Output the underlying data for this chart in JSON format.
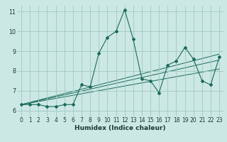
{
  "title": "",
  "xlabel": "Humidex (Indice chaleur)",
  "bg_color": "#cce8e4",
  "line_color": "#1a6b5a",
  "grid_color": "#a0c8c0",
  "xlim": [
    -0.5,
    23.5
  ],
  "ylim": [
    5.7,
    11.3
  ],
  "xticks": [
    0,
    1,
    2,
    3,
    4,
    5,
    6,
    7,
    8,
    9,
    10,
    11,
    12,
    13,
    14,
    15,
    16,
    17,
    18,
    19,
    20,
    21,
    22,
    23
  ],
  "yticks": [
    6,
    7,
    8,
    9,
    10,
    11
  ],
  "series1_x": [
    0,
    1,
    2,
    3,
    4,
    5,
    6,
    7,
    8,
    9,
    10,
    11,
    12,
    13,
    14,
    15,
    16,
    17,
    18,
    19,
    20,
    21,
    22,
    23
  ],
  "series1_y": [
    6.3,
    6.3,
    6.3,
    6.2,
    6.2,
    6.3,
    6.3,
    7.3,
    7.2,
    8.9,
    9.7,
    10.0,
    11.1,
    9.6,
    7.6,
    7.5,
    6.9,
    8.3,
    8.5,
    9.2,
    8.6,
    7.5,
    7.3,
    8.7
  ],
  "line3_x": [
    0,
    23
  ],
  "line3_y": [
    6.3,
    8.1
  ],
  "line4_x": [
    0,
    23
  ],
  "line4_y": [
    6.3,
    8.55
  ],
  "line5_x": [
    0,
    23
  ],
  "line5_y": [
    6.3,
    8.85
  ],
  "xlabel_fontsize": 6.5,
  "tick_fontsize": 5.5
}
